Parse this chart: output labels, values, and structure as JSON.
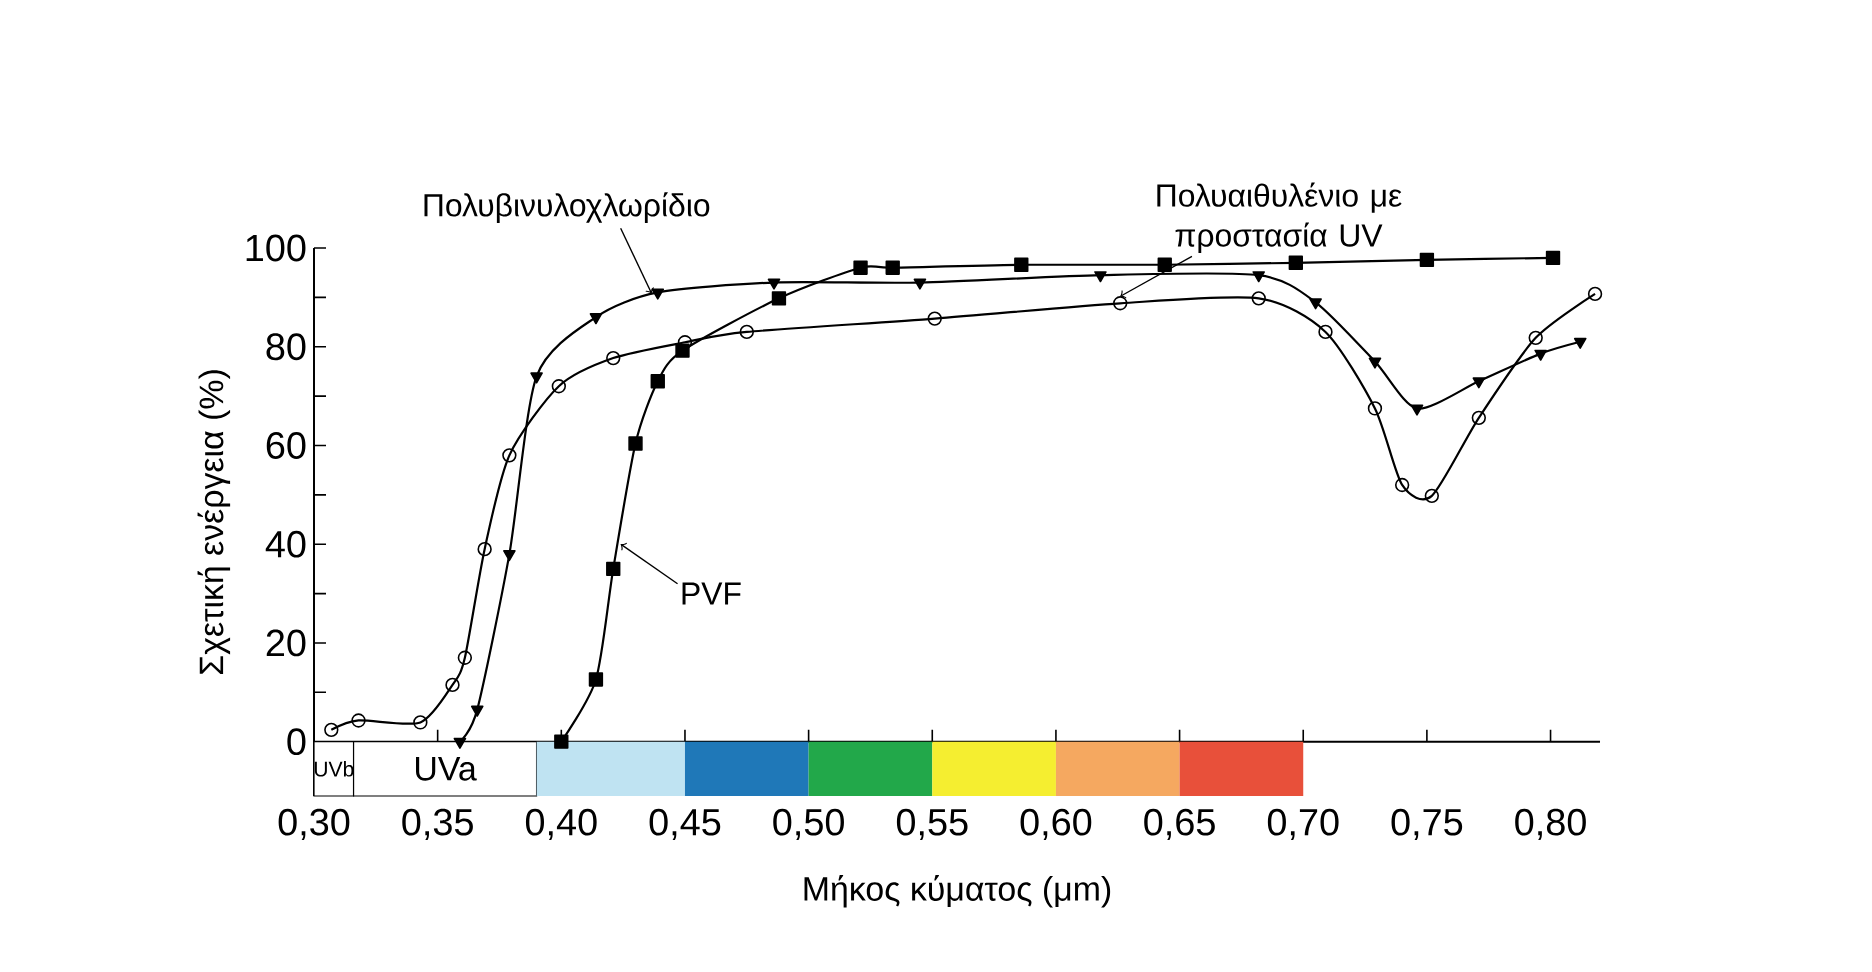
{
  "chart_data": {
    "type": "line",
    "xlabel": "Μήκος κύματος (μm)",
    "ylabel": "Σχετική ενέργεια (%)",
    "xlim": [
      0.3,
      0.82
    ],
    "ylim": [
      -11,
      100
    ],
    "xticks": [
      {
        "value": 0.3,
        "label": "0,30"
      },
      {
        "value": 0.35,
        "label": "0,35"
      },
      {
        "value": 0.4,
        "label": "0,40"
      },
      {
        "value": 0.45,
        "label": "0,45"
      },
      {
        "value": 0.5,
        "label": "0,50"
      },
      {
        "value": 0.55,
        "label": "0,55"
      },
      {
        "value": 0.6,
        "label": "0,60"
      },
      {
        "value": 0.65,
        "label": "0,65"
      },
      {
        "value": 0.7,
        "label": "0,70"
      },
      {
        "value": 0.75,
        "label": "0,75"
      },
      {
        "value": 0.8,
        "label": "0,80"
      }
    ],
    "yticks": [
      0,
      {
        "value": 10,
        "label": null
      },
      20,
      {
        "value": 30,
        "label": null
      },
      40,
      {
        "value": 50,
        "label": null
      },
      60,
      {
        "value": 70,
        "label": null
      },
      80,
      {
        "value": 90,
        "label": null
      },
      100
    ],
    "grid": false,
    "legend": false,
    "line_style": "solid",
    "series": [
      {
        "name": "Πολυβινυλοχλωρίδιο",
        "color": "#000000",
        "marker": "triangle",
        "x": [
          0.359,
          0.366,
          0.379,
          0.39,
          0.414,
          0.439,
          0.486,
          0.545,
          0.618,
          0.682,
          0.705,
          0.729,
          0.746,
          0.771,
          0.796,
          0.812
        ],
        "values": [
          0,
          6.5,
          38,
          74,
          86,
          91,
          93,
          93,
          94.5,
          94.5,
          89,
          77,
          67.5,
          73,
          78.6,
          81
        ]
      },
      {
        "name": "Πολυαιθυλένιο με προστασία UV",
        "color": "#000000",
        "marker": "circle",
        "x": [
          0.307,
          0.318,
          0.343,
          0.356,
          0.361,
          0.369,
          0.379,
          0.399,
          0.421,
          0.45,
          0.475,
          0.551,
          0.626,
          0.682,
          0.709,
          0.729,
          0.74,
          0.752,
          0.771,
          0.794,
          0.818
        ],
        "values": [
          2.4,
          4.3,
          3.9,
          11.5,
          17,
          39,
          58,
          72,
          77.7,
          80.9,
          83,
          85.7,
          88.8,
          89.8,
          83,
          67.5,
          52,
          49.8,
          65.6,
          81.8,
          90.7
        ]
      },
      {
        "name": "PVF",
        "color": "#000000",
        "marker": "square",
        "x": [
          0.4,
          0.414,
          0.421,
          0.43,
          0.439,
          0.449,
          0.488,
          0.521,
          0.534,
          0.586,
          0.644,
          0.697,
          0.75,
          0.801
        ],
        "values": [
          0,
          12.6,
          35,
          60.4,
          73,
          79.2,
          89.8,
          96,
          96,
          96.6,
          96.6,
          97,
          97.6,
          98
        ]
      }
    ],
    "bands": [
      {
        "axis": "x",
        "from": 0.3,
        "to": 0.316,
        "label": "UVb",
        "color": "#ffffff"
      },
      {
        "axis": "x",
        "from": 0.316,
        "to": 0.39,
        "label": "UVa",
        "color": "#ffffff"
      },
      {
        "axis": "x",
        "from": 0.39,
        "to": 0.45,
        "color": "#bfe3f2"
      },
      {
        "axis": "x",
        "from": 0.45,
        "to": 0.5,
        "color": "#1f78b8"
      },
      {
        "axis": "x",
        "from": 0.5,
        "to": 0.55,
        "color": "#22a84a"
      },
      {
        "axis": "x",
        "from": 0.55,
        "to": 0.6,
        "color": "#f5ee30"
      },
      {
        "axis": "x",
        "from": 0.6,
        "to": 0.65,
        "color": "#f5a860"
      },
      {
        "axis": "x",
        "from": 0.65,
        "to": 0.7,
        "color": "#e8503a"
      }
    ]
  }
}
